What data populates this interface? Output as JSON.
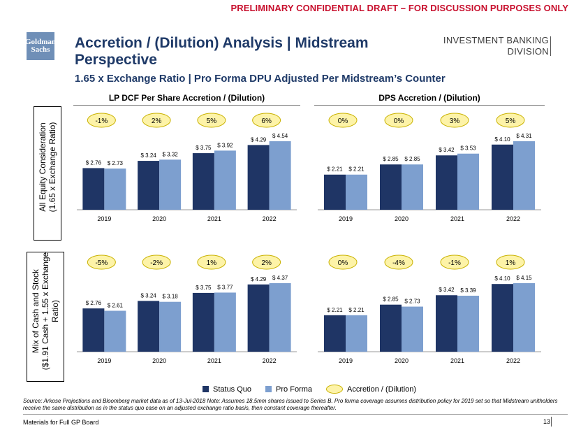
{
  "banner": "PRELIMINARY CONFIDENTIAL DRAFT – FOR DISCUSSION PURPOSES ONLY",
  "logo": {
    "line1": "Goldman",
    "line2": "Sachs"
  },
  "division": {
    "line1": "INVESTMENT BANKING",
    "line2": "DIVISION"
  },
  "title": "Accretion / (Dilution) Analysis | Midstream Perspective",
  "subtitle": "1.65 x Exchange Ratio | Pro Forma DPU Adjusted Per Midstream’s Counter",
  "headers": {
    "left": "LP DCF Per Share Accretion / (Dilution)",
    "right": "DPS Accretion / (Dilution)"
  },
  "row_labels": {
    "top": {
      "line1": "All Equity Consideration",
      "line2": "(1.65 x Exchange Ratio)"
    },
    "bottom": {
      "line1": "Mix of Cash and Stock",
      "line2": "($1.91 Cash + 1.55 x Exchange",
      "line3": "Ratio)"
    }
  },
  "legend": {
    "status_quo": "Status Quo",
    "pro_forma": "Pro Forma",
    "accretion": "Accretion / (Dilution)"
  },
  "colors": {
    "status_quo": "#1f3565",
    "pro_forma": "#7d9fcf",
    "bubble_fill": "#fdf3a8",
    "bubble_stroke": "#c9b200",
    "title": "#1f3a68",
    "banner": "#c8102e"
  },
  "source": "Source: Arkose Projections and Bloomberg market data as of 13-Jul-2018 Note: Assumes 18.5mm shares issued to Series B. Pro forma coverage assumes distribution policy for 2019 set so that Midstream unitholders receive the same distribution as in the status quo case on an adjusted exchange ratio basis, then constant coverage thereafter.",
  "footer": "Materials for Full GP Board",
  "page_number": "13",
  "chart_data": [
    {
      "type": "bar",
      "id": "top-left",
      "title": "LP DCF Per Share Accretion / (Dilution)",
      "categories": [
        "2019",
        "2020",
        "2021",
        "2022"
      ],
      "series": [
        {
          "name": "Status Quo",
          "values": [
            2.76,
            3.24,
            3.75,
            4.29
          ],
          "labels": [
            "$ 2.76",
            "$ 3.24",
            "$ 3.75",
            "$ 4.29"
          ]
        },
        {
          "name": "Pro Forma",
          "values": [
            2.73,
            3.32,
            3.92,
            4.54
          ],
          "labels": [
            "$ 2.73",
            "$ 3.32",
            "$ 3.92",
            "$ 4.54"
          ]
        }
      ],
      "accretion": [
        "-1%",
        "2%",
        "5%",
        "6%"
      ],
      "ylim": [
        0,
        4.54
      ]
    },
    {
      "type": "bar",
      "id": "top-right",
      "title": "DPS Accretion / (Dilution)",
      "categories": [
        "2019",
        "2020",
        "2021",
        "2022"
      ],
      "series": [
        {
          "name": "Status Quo",
          "values": [
            2.21,
            2.85,
            3.42,
            4.1
          ],
          "labels": [
            "$ 2.21",
            "$ 2.85",
            "$ 3.42",
            "$ 4.10"
          ]
        },
        {
          "name": "Pro Forma",
          "values": [
            2.21,
            2.85,
            3.53,
            4.31
          ],
          "labels": [
            "$ 2.21",
            "$ 2.85",
            "$ 3.53",
            "$ 4.31"
          ]
        }
      ],
      "accretion": [
        "0%",
        "0%",
        "3%",
        "5%"
      ],
      "ylim": [
        0,
        4.31
      ]
    },
    {
      "type": "bar",
      "id": "bottom-left",
      "title": "LP DCF Per Share Accretion / (Dilution)",
      "categories": [
        "2019",
        "2020",
        "2021",
        "2022"
      ],
      "series": [
        {
          "name": "Status Quo",
          "values": [
            2.76,
            3.24,
            3.75,
            4.29
          ],
          "labels": [
            "$ 2.76",
            "$ 3.24",
            "$ 3.75",
            "$ 4.29"
          ]
        },
        {
          "name": "Pro Forma",
          "values": [
            2.61,
            3.18,
            3.77,
            4.37
          ],
          "labels": [
            "$ 2.61",
            "$ 3.18",
            "$ 3.77",
            "$ 4.37"
          ]
        }
      ],
      "accretion": [
        "-5%",
        "-2%",
        "1%",
        "2%"
      ],
      "ylim": [
        0,
        4.37
      ]
    },
    {
      "type": "bar",
      "id": "bottom-right",
      "title": "DPS Accretion / (Dilution)",
      "categories": [
        "2019",
        "2020",
        "2021",
        "2022"
      ],
      "series": [
        {
          "name": "Status Quo",
          "values": [
            2.21,
            2.85,
            3.42,
            4.1
          ],
          "labels": [
            "$ 2.21",
            "$ 2.85",
            "$ 3.42",
            "$ 4.10"
          ]
        },
        {
          "name": "Pro Forma",
          "values": [
            2.21,
            2.73,
            3.39,
            4.15
          ],
          "labels": [
            "$ 2.21",
            "$ 2.73",
            "$ 3.39",
            "$ 4.15"
          ]
        }
      ],
      "accretion": [
        "0%",
        "-4%",
        "-1%",
        "1%"
      ],
      "ylim": [
        0,
        4.15
      ]
    }
  ]
}
